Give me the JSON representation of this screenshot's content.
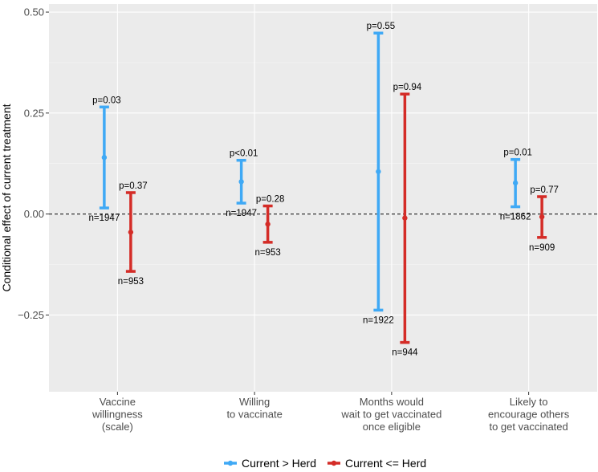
{
  "chart_data": {
    "type": "errorbar",
    "title": "",
    "xlabel": "",
    "ylabel": "Conditional effect of current treatment",
    "ylim": [
      -0.44,
      0.52
    ],
    "yticks": [
      -0.25,
      0.0,
      0.25,
      0.5
    ],
    "ytick_labels": [
      "−0.25",
      "0.00",
      "0.25",
      "0.50"
    ],
    "reference_line": 0,
    "grid": true,
    "legend_position": "bottom",
    "categories": [
      [
        "Vaccine",
        "willingness",
        "(scale)"
      ],
      [
        "Willing",
        "to vaccinate"
      ],
      [
        "Months would",
        "wait to get vaccinated",
        "once eligible"
      ],
      [
        "Likely to",
        "encourage others",
        "to get vaccinated"
      ]
    ],
    "series": [
      {
        "name": "Current > Herd",
        "color": "#3fa9f5",
        "estimate": [
          0.14,
          0.08,
          0.105,
          0.077
        ],
        "lower": [
          0.015,
          0.027,
          -0.238,
          0.018
        ],
        "upper": [
          0.265,
          0.133,
          0.448,
          0.135
        ],
        "p_labels": [
          "p=0.03",
          "p<0.01",
          "p=0.55",
          "p=0.01"
        ],
        "n_labels": [
          "n=1947",
          "n=1947",
          "n=1922",
          "n=1862"
        ]
      },
      {
        "name": "Current <= Herd",
        "color": "#d42c27",
        "estimate": [
          -0.045,
          -0.025,
          -0.01,
          -0.007
        ],
        "lower": [
          -0.142,
          -0.07,
          -0.318,
          -0.058
        ],
        "upper": [
          0.053,
          0.02,
          0.297,
          0.043
        ],
        "p_labels": [
          "p=0.37",
          "p=0.28",
          "p=0.94",
          "p=0.77"
        ],
        "n_labels": [
          "n=953",
          "n=953",
          "n=944",
          "n=909"
        ]
      }
    ]
  }
}
